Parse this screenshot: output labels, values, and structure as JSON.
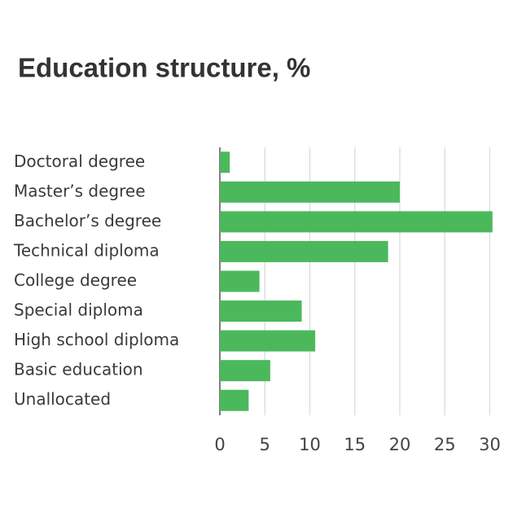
{
  "chart_data": {
    "type": "bar",
    "orientation": "horizontal",
    "title": "Education structure, %",
    "categories": [
      "Doctoral degree",
      "Master’s degree",
      "Bachelor’s degree",
      "Technical diploma",
      "College degree",
      "Special diploma",
      "High school diploma",
      "Basic education",
      "Unallocated"
    ],
    "values": [
      1.1,
      20.0,
      30.3,
      18.7,
      4.4,
      9.1,
      10.6,
      5.6,
      3.2
    ],
    "color": "#4cb85c",
    "xlim": [
      0,
      30.5
    ],
    "xticks": [
      0,
      5,
      10,
      15,
      20,
      25,
      30
    ],
    "grid": true
  }
}
